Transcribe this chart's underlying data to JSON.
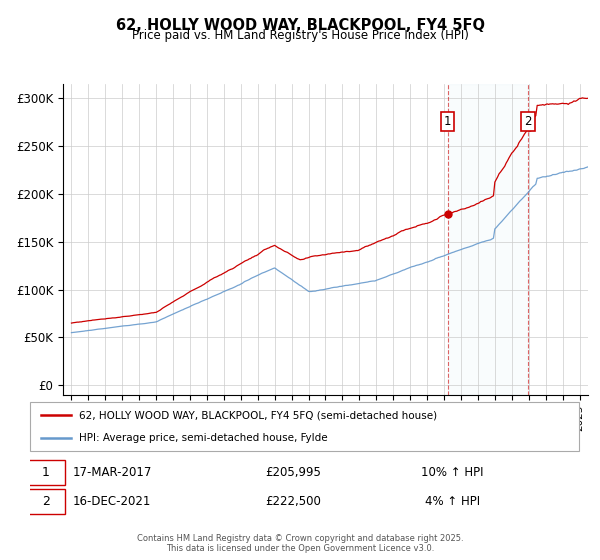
{
  "title": "62, HOLLY WOOD WAY, BLACKPOOL, FY4 5FQ",
  "subtitle": "Price paid vs. HM Land Registry's House Price Index (HPI)",
  "background_color": "#ffffff",
  "plot_bg_color": "#ffffff",
  "grid_color": "#cccccc",
  "red_line_color": "#cc0000",
  "blue_line_color": "#6699cc",
  "marker1_date_x": 2017.21,
  "marker2_date_x": 2021.96,
  "marker1_date_label": "17-MAR-2017",
  "marker2_date_label": "16-DEC-2021",
  "marker1_price": 205995,
  "marker2_price": 222500,
  "marker1_hpi_change": "10% ↑ HPI",
  "marker2_hpi_change": "4% ↑ HPI",
  "legend_label_red": "62, HOLLY WOOD WAY, BLACKPOOL, FY4 5FQ (semi-detached house)",
  "legend_label_blue": "HPI: Average price, semi-detached house, Fylde",
  "footer": "Contains HM Land Registry data © Crown copyright and database right 2025.\nThis data is licensed under the Open Government Licence v3.0.",
  "yticks": [
    0,
    50000,
    100000,
    150000,
    200000,
    250000,
    300000
  ],
  "ytick_labels": [
    "£0",
    "£50K",
    "£100K",
    "£150K",
    "£200K",
    "£250K",
    "£300K"
  ],
  "xmin": 1994.5,
  "xmax": 2025.5,
  "ymin": -10000,
  "ymax": 315000
}
